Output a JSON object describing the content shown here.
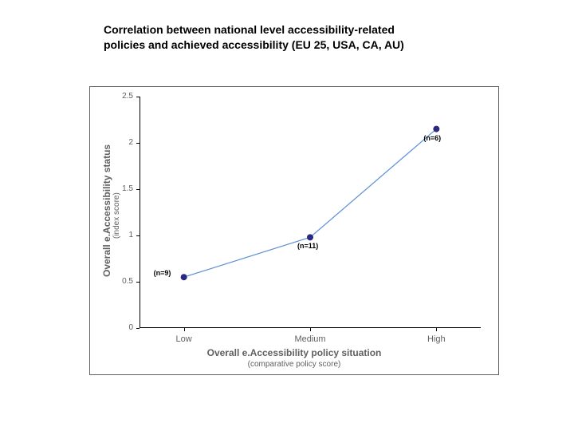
{
  "title_line1": "Correlation between national level accessibility-related",
  "title_line2": "policies  and achieved accessibility (EU 25, USA, CA, AU)",
  "chart": {
    "type": "line",
    "background_color": "#ffffff",
    "frame_color": "#606060",
    "axis_color": "#000000",
    "line_color": "#5b8fd6",
    "line_width": 1.2,
    "marker_color": "#2a2a80",
    "marker_radius": 4,
    "ylabel": "Overall e.Accessibility status",
    "ylabel_sub": "(index score)",
    "xlabel": "Overall e.Accessibility policy situation",
    "xlabel_sub": "(comparative policy score)",
    "ylim": [
      0,
      2.5
    ],
    "ytick_step": 0.5,
    "yticks": [
      "0",
      "0.5",
      "1",
      "1.5",
      "2",
      "2.5"
    ],
    "xcats": [
      "Low",
      "Medium",
      "High"
    ],
    "points": [
      {
        "cat": "Low",
        "y": 0.55,
        "label": "(n=9)",
        "label_side": "left"
      },
      {
        "cat": "Medium",
        "y": 0.98,
        "label": "(n=11)",
        "label_side": "below"
      },
      {
        "cat": "High",
        "y": 2.15,
        "label": "(n=6)",
        "label_side": "below"
      }
    ],
    "title_fontsize": 14,
    "axis_label_fontsize": 12,
    "tick_fontsize": 10,
    "point_label_fontsize": 9
  }
}
